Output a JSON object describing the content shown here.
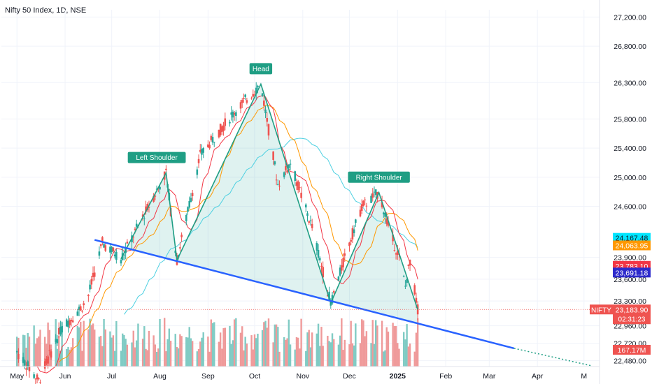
{
  "header": {
    "title": "Nifty 50 Index, 1D, NSE"
  },
  "chart_data": {
    "type": "candlestick",
    "ylim": [
      22400,
      27300
    ],
    "y_ticks": [
      "27,200.00",
      "26,800.00",
      "26,300.00",
      "25,800.00",
      "25,400.00",
      "25,000.00",
      "24,600.00",
      "23,900.00",
      "23,600.00",
      "23,300.00",
      "22,960.00",
      "22,720.00",
      "22,480.00"
    ],
    "y_tick_values": [
      27200,
      26800,
      26300,
      25800,
      25400,
      25000,
      24600,
      23900,
      23600,
      23300,
      22960,
      22720,
      22480
    ],
    "x_ticks": [
      "May",
      "Jun",
      "Jul",
      "Aug",
      "Sep",
      "Oct",
      "Nov",
      "Dec",
      "2025",
      "Feb",
      "Mar",
      "Apr",
      "M"
    ],
    "x_tick_days": [
      0,
      31,
      61,
      92,
      123,
      153,
      184,
      214,
      245,
      276,
      304,
      335,
      365
    ],
    "x_start_date": "2024-05-01",
    "grid": true,
    "colors": {
      "up": "#26a69a",
      "down": "#ef5350",
      "vol_up": "#80cbc4",
      "vol_down": "#ef9a9a",
      "ma_fast": "#f23645",
      "ma_mid": "#ff9800",
      "ma_slow": "#4dd0e1",
      "ma_long": "#3f3bc9",
      "pattern": "#1f9e84",
      "trendline": "#2962ff"
    },
    "pattern_labels": {
      "left_shoulder": "Left Shoulder",
      "head": "Head",
      "right_shoulder": "Right Shoulder"
    },
    "pattern_points": [
      {
        "day": 67,
        "value": 23880
      },
      {
        "day": 96,
        "value": 25060
      },
      {
        "day": 103,
        "value": 23860
      },
      {
        "day": 157,
        "value": 26280
      },
      {
        "day": 202,
        "value": 23270
      },
      {
        "day": 233,
        "value": 24790
      },
      {
        "day": 258,
        "value": 23180
      }
    ],
    "neckline": [
      {
        "day": 50,
        "value": 24140
      },
      {
        "day": 320,
        "value": 22650
      }
    ],
    "neckline_extension": [
      {
        "day": 320,
        "value": 22650
      },
      {
        "day": 370,
        "value": 22410
      }
    ],
    "price_labels": [
      {
        "text": "24,167.48",
        "value": 24167.48,
        "bg": "#00e5ff",
        "fg": "#131722"
      },
      {
        "text": "24,063.95",
        "value": 24063.95,
        "bg": "#ff9800",
        "fg": "#ffffff"
      },
      {
        "text": "23,783.10",
        "value": 23783.1,
        "bg": "#f23645",
        "fg": "#ffffff"
      },
      {
        "text": "23,691.18",
        "value": 23691.18,
        "bg": "#2d2acb",
        "fg": "#ffffff"
      }
    ],
    "last_price": {
      "symbol": "NIFTY",
      "value": 23183.9,
      "text": "23,183.90",
      "countdown": "02:31:23"
    },
    "volume_label": "167.17M"
  }
}
